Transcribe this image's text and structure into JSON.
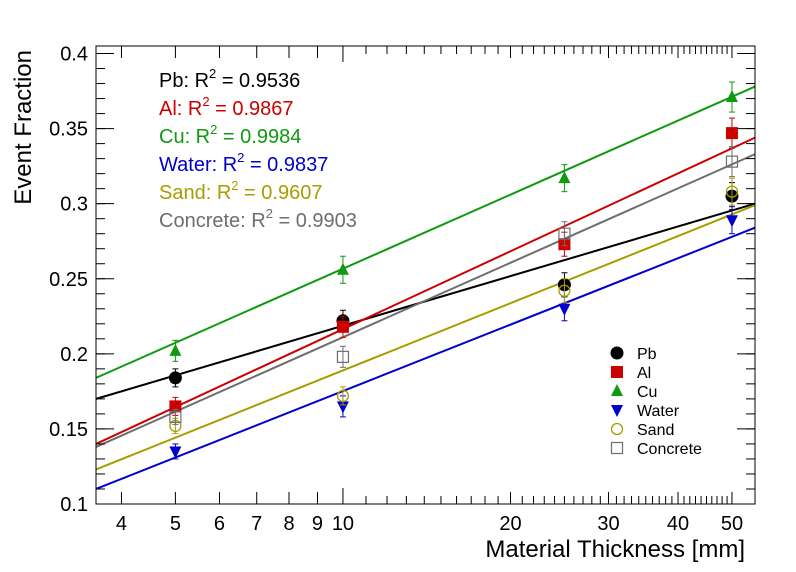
{
  "chart_data": {
    "type": "scatter",
    "xscale": "log",
    "xlim": [
      3.6,
      55
    ],
    "ylim": [
      0.1,
      0.405
    ],
    "xlabel": "Material Thickness [mm]",
    "ylabel": "Event Fraction",
    "xticks": [
      4,
      5,
      6,
      7,
      8,
      9,
      10,
      20,
      30,
      40,
      50
    ],
    "yticks": [
      0.1,
      0.15,
      0.2,
      0.25,
      0.3,
      0.35,
      0.4
    ],
    "ytick_labels": [
      "0.1",
      "0.15",
      "0.2",
      "0.25",
      "0.3",
      "0.35",
      "0.4"
    ],
    "x": [
      5,
      10,
      25,
      50
    ],
    "series": [
      {
        "name": "Pb",
        "marker": "circle-filled",
        "color": "#000000",
        "values": [
          0.184,
          0.222,
          0.246,
          0.305
        ],
        "errors": [
          0.006,
          0.007,
          0.008,
          0.009
        ],
        "fit": {
          "type": "log",
          "x0": 3.6,
          "y0": 0.17,
          "x1": 55,
          "y1": 0.3
        },
        "r2_prefix": "Pb: R",
        "r2_value": " = 0.9536"
      },
      {
        "name": "Al",
        "marker": "square-filled",
        "color": "#cc0000",
        "values": [
          0.165,
          0.218,
          0.273,
          0.347
        ],
        "errors": [
          0.006,
          0.007,
          0.008,
          0.01
        ],
        "fit": {
          "type": "log",
          "x0": 3.6,
          "y0": 0.14,
          "x1": 55,
          "y1": 0.344
        },
        "r2_prefix": "Al: R",
        "r2_value": " = 0.9867"
      },
      {
        "name": "Cu",
        "marker": "triangle-up",
        "color": "#0f9a0f",
        "values": [
          0.202,
          0.256,
          0.317,
          0.371
        ],
        "errors": [
          0.007,
          0.009,
          0.009,
          0.01
        ],
        "fit": {
          "type": "log",
          "x0": 3.6,
          "y0": 0.184,
          "x1": 55,
          "y1": 0.378
        },
        "r2_prefix": "Cu: R",
        "r2_value": " = 0.9984"
      },
      {
        "name": "Water",
        "marker": "triangle-down",
        "color": "#0000cc",
        "values": [
          0.135,
          0.165,
          0.23,
          0.289
        ],
        "errors": [
          0.005,
          0.007,
          0.008,
          0.009
        ],
        "fit": {
          "type": "log",
          "x0": 3.6,
          "y0": 0.11,
          "x1": 55,
          "y1": 0.284
        },
        "r2_prefix": "Water: R",
        "r2_value": " = 0.9837"
      },
      {
        "name": "Sand",
        "marker": "circle-open",
        "color": "#a89c00",
        "values": [
          0.152,
          0.172,
          0.242,
          0.308
        ],
        "errors": [
          0.005,
          0.006,
          0.008,
          0.009
        ],
        "fit": {
          "type": "log",
          "x0": 3.6,
          "y0": 0.123,
          "x1": 55,
          "y1": 0.299
        },
        "r2_prefix": "Sand: R",
        "r2_value": " = 0.9607"
      },
      {
        "name": "Concrete",
        "marker": "square-open",
        "color": "#6e6e6e",
        "values": [
          0.158,
          0.198,
          0.28,
          0.328
        ],
        "errors": [
          0.005,
          0.007,
          0.008,
          0.01
        ],
        "fit": {
          "type": "log",
          "x0": 3.6,
          "y0": 0.138,
          "x1": 55,
          "y1": 0.333
        },
        "r2_prefix": "Concrete: R",
        "r2_value": " = 0.9903"
      }
    ],
    "r2_superscript": "2",
    "legend_placement": "bottom-right",
    "annotations_placement": "top-left"
  }
}
